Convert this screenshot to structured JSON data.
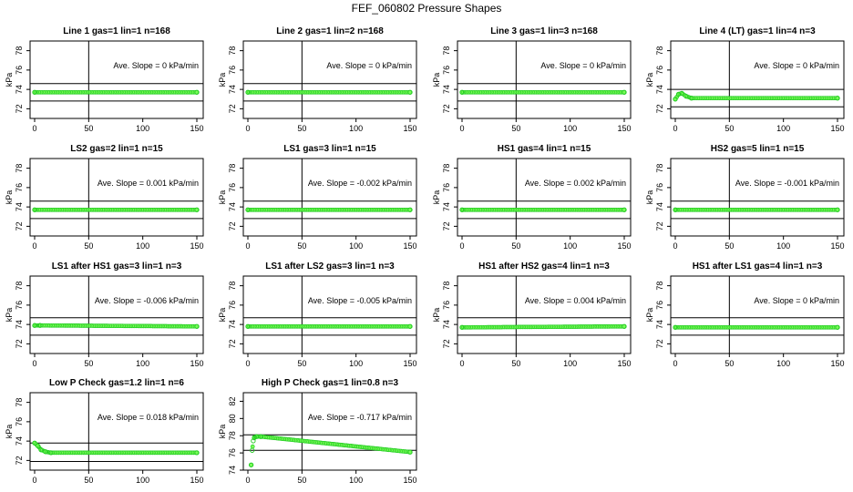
{
  "title": "FEF_060802  Pressure Shapes",
  "colors": {
    "points": "#22cc22",
    "point_fill": "#7cfc5a",
    "axis": "#000000"
  },
  "chart_data": [
    {
      "type": "scatter",
      "title": "Line 1 gas=1 lin=1 n=168",
      "ylabel": "kPa",
      "annotation": "Ave. Slope = 0 kPa/min",
      "xlim": [
        0,
        150
      ],
      "ylim": [
        71,
        79
      ],
      "yticks": [
        72,
        74,
        76,
        78
      ],
      "xticks": [
        0,
        50,
        100,
        150
      ],
      "hlines": [
        72.8,
        74.6
      ],
      "vline": 50,
      "series": [
        {
          "x": [
            0,
            150
          ],
          "y": [
            73.7,
            73.7
          ]
        }
      ]
    },
    {
      "type": "scatter",
      "title": "Line 2 gas=1 lin=2 n=168",
      "ylabel": "kPa",
      "annotation": "Ave. Slope = 0 kPa/min",
      "xlim": [
        0,
        150
      ],
      "ylim": [
        71,
        79
      ],
      "yticks": [
        72,
        74,
        76,
        78
      ],
      "xticks": [
        0,
        50,
        100,
        150
      ],
      "hlines": [
        72.8,
        74.6
      ],
      "vline": 50,
      "series": [
        {
          "x": [
            0,
            150
          ],
          "y": [
            73.7,
            73.7
          ]
        }
      ]
    },
    {
      "type": "scatter",
      "title": "Line 3 gas=1 lin=3 n=168",
      "ylabel": "kPa",
      "annotation": "Ave. Slope = 0 kPa/min",
      "xlim": [
        0,
        150
      ],
      "ylim": [
        71,
        79
      ],
      "yticks": [
        72,
        74,
        76,
        78
      ],
      "xticks": [
        0,
        50,
        100,
        150
      ],
      "hlines": [
        72.8,
        74.6
      ],
      "vline": 50,
      "series": [
        {
          "x": [
            0,
            150
          ],
          "y": [
            73.7,
            73.7
          ]
        }
      ]
    },
    {
      "type": "scatter",
      "title": "Line 4 (LT) gas=1 lin=4 n=3",
      "ylabel": "kPa",
      "annotation": "Ave. Slope = 0 kPa/min",
      "xlim": [
        0,
        150
      ],
      "ylim": [
        71,
        79
      ],
      "yticks": [
        72,
        74,
        76,
        78
      ],
      "xticks": [
        0,
        50,
        100,
        150
      ],
      "hlines": [
        72.2,
        74.0
      ],
      "vline": 50,
      "series": [
        {
          "x": [
            0,
            3,
            6,
            10,
            15,
            150
          ],
          "y": [
            73.0,
            73.5,
            73.6,
            73.3,
            73.1,
            73.1
          ]
        }
      ]
    },
    {
      "type": "scatter",
      "title": "LS2 gas=2 lin=1 n=15",
      "ylabel": "kPa",
      "annotation": "Ave. Slope = 0.001 kPa/min",
      "xlim": [
        0,
        150
      ],
      "ylim": [
        71,
        79
      ],
      "yticks": [
        72,
        74,
        76,
        78
      ],
      "xticks": [
        0,
        50,
        100,
        150
      ],
      "hlines": [
        72.8,
        74.6
      ],
      "vline": 50,
      "series": [
        {
          "x": [
            0,
            150
          ],
          "y": [
            73.7,
            73.7
          ]
        }
      ]
    },
    {
      "type": "scatter",
      "title": "LS1 gas=3 lin=1 n=15",
      "ylabel": "kPa",
      "annotation": "Ave. Slope = -0.002 kPa/min",
      "xlim": [
        0,
        150
      ],
      "ylim": [
        71,
        79
      ],
      "yticks": [
        72,
        74,
        76,
        78
      ],
      "xticks": [
        0,
        50,
        100,
        150
      ],
      "hlines": [
        72.8,
        74.6
      ],
      "vline": 50,
      "series": [
        {
          "x": [
            0,
            150
          ],
          "y": [
            73.7,
            73.7
          ]
        }
      ]
    },
    {
      "type": "scatter",
      "title": "HS1 gas=4 lin=1 n=15",
      "ylabel": "kPa",
      "annotation": "Ave. Slope = 0.002 kPa/min",
      "xlim": [
        0,
        150
      ],
      "ylim": [
        71,
        79
      ],
      "yticks": [
        72,
        74,
        76,
        78
      ],
      "xticks": [
        0,
        50,
        100,
        150
      ],
      "hlines": [
        72.8,
        74.6
      ],
      "vline": 50,
      "series": [
        {
          "x": [
            0,
            150
          ],
          "y": [
            73.7,
            73.7
          ]
        }
      ]
    },
    {
      "type": "scatter",
      "title": "HS2 gas=5 lin=1 n=15",
      "ylabel": "kPa",
      "annotation": "Ave. Slope = -0.001 kPa/min",
      "xlim": [
        0,
        150
      ],
      "ylim": [
        71,
        79
      ],
      "yticks": [
        72,
        74,
        76,
        78
      ],
      "xticks": [
        0,
        50,
        100,
        150
      ],
      "hlines": [
        72.8,
        74.6
      ],
      "vline": 50,
      "series": [
        {
          "x": [
            0,
            150
          ],
          "y": [
            73.7,
            73.7
          ]
        }
      ]
    },
    {
      "type": "scatter",
      "title": "LS1 after HS1 gas=3 lin=1 n=3",
      "ylabel": "kPa",
      "annotation": "Ave. Slope = -0.006 kPa/min",
      "xlim": [
        0,
        150
      ],
      "ylim": [
        71,
        79
      ],
      "yticks": [
        72,
        74,
        76,
        78
      ],
      "xticks": [
        0,
        50,
        100,
        150
      ],
      "hlines": [
        72.9,
        74.7
      ],
      "vline": 50,
      "series": [
        {
          "x": [
            0,
            5,
            150
          ],
          "y": [
            73.9,
            73.9,
            73.8
          ]
        }
      ]
    },
    {
      "type": "scatter",
      "title": "LS1 after LS2 gas=3 lin=1 n=3",
      "ylabel": "kPa",
      "annotation": "Ave. Slope = -0.005 kPa/min",
      "xlim": [
        0,
        150
      ],
      "ylim": [
        71,
        79
      ],
      "yticks": [
        72,
        74,
        76,
        78
      ],
      "xticks": [
        0,
        50,
        100,
        150
      ],
      "hlines": [
        72.9,
        74.7
      ],
      "vline": 50,
      "series": [
        {
          "x": [
            0,
            150
          ],
          "y": [
            73.8,
            73.8
          ]
        }
      ]
    },
    {
      "type": "scatter",
      "title": "HS1 after HS2 gas=4 lin=1 n=3",
      "ylabel": "kPa",
      "annotation": "Ave. Slope = 0.004 kPa/min",
      "xlim": [
        0,
        150
      ],
      "ylim": [
        71,
        79
      ],
      "yticks": [
        72,
        74,
        76,
        78
      ],
      "xticks": [
        0,
        50,
        100,
        150
      ],
      "hlines": [
        72.9,
        74.7
      ],
      "vline": 50,
      "series": [
        {
          "x": [
            0,
            150
          ],
          "y": [
            73.7,
            73.8
          ]
        }
      ]
    },
    {
      "type": "scatter",
      "title": "HS1 after LS1 gas=4 lin=1 n=3",
      "ylabel": "kPa",
      "annotation": "Ave. Slope = 0 kPa/min",
      "xlim": [
        0,
        150
      ],
      "ylim": [
        71,
        79
      ],
      "yticks": [
        72,
        74,
        76,
        78
      ],
      "xticks": [
        0,
        50,
        100,
        150
      ],
      "hlines": [
        72.9,
        74.7
      ],
      "vline": 50,
      "series": [
        {
          "x": [
            0,
            150
          ],
          "y": [
            73.7,
            73.7
          ]
        }
      ]
    },
    {
      "type": "scatter",
      "title": "Low P Check gas=1.2 lin=1 n=6",
      "ylabel": "kPa",
      "annotation": "Ave. Slope = 0.018 kPa/min",
      "xlim": [
        0,
        150
      ],
      "ylim": [
        71,
        79
      ],
      "yticks": [
        72,
        74,
        76,
        78
      ],
      "xticks": [
        0,
        50,
        100,
        150
      ],
      "hlines": [
        71.9,
        73.8
      ],
      "vline": 50,
      "series": [
        {
          "x": [
            0,
            3,
            6,
            10,
            15,
            150
          ],
          "y": [
            73.8,
            73.5,
            73.1,
            72.9,
            72.8,
            72.8
          ]
        }
      ]
    },
    {
      "type": "scatter",
      "title": "High P Check gas=1 lin=0.8 n=3",
      "ylabel": "kPa",
      "annotation": "Ave. Slope = -0.717 kPa/min",
      "xlim": [
        0,
        150
      ],
      "ylim": [
        74,
        83
      ],
      "yticks": [
        74,
        76,
        78,
        80,
        82
      ],
      "xticks": [
        0,
        50,
        100,
        150
      ],
      "hlines": [
        76.3,
        78.1
      ],
      "vline": 50,
      "series": [
        {
          "x": [
            3,
            4,
            5,
            6,
            8,
            12,
            150
          ],
          "y": [
            74.6,
            76.3,
            77.4,
            77.8,
            77.9,
            77.9,
            76.1
          ]
        }
      ]
    }
  ]
}
